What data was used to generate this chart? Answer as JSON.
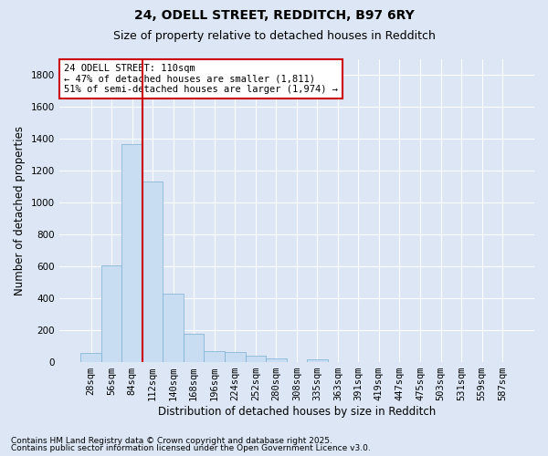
{
  "title_line1": "24, ODELL STREET, REDDITCH, B97 6RY",
  "title_line2": "Size of property relative to detached houses in Redditch",
  "xlabel": "Distribution of detached houses by size in Redditch",
  "ylabel": "Number of detached properties",
  "categories": [
    "28sqm",
    "56sqm",
    "84sqm",
    "112sqm",
    "140sqm",
    "168sqm",
    "196sqm",
    "224sqm",
    "252sqm",
    "280sqm",
    "308sqm",
    "335sqm",
    "363sqm",
    "391sqm",
    "419sqm",
    "447sqm",
    "475sqm",
    "503sqm",
    "531sqm",
    "559sqm",
    "587sqm"
  ],
  "values": [
    55,
    605,
    1365,
    1130,
    430,
    175,
    65,
    60,
    40,
    20,
    0,
    15,
    0,
    0,
    0,
    0,
    0,
    0,
    0,
    0,
    0
  ],
  "bar_color": "#c9ddf2",
  "bar_edge_color": "#7bafd4",
  "vline_pos": 2.5,
  "vline_color": "#cc0000",
  "annotation_text": "24 ODELL STREET: 110sqm\n← 47% of detached houses are smaller (1,811)\n51% of semi-detached houses are larger (1,974) →",
  "annotation_box_edge": "#cc0000",
  "ylim": [
    0,
    1900
  ],
  "yticks": [
    0,
    200,
    400,
    600,
    800,
    1000,
    1200,
    1400,
    1600,
    1800
  ],
  "footer_line1": "Contains HM Land Registry data © Crown copyright and database right 2025.",
  "footer_line2": "Contains public sector information licensed under the Open Government Licence v3.0.",
  "fig_facecolor": "#dce6f5",
  "plot_facecolor": "#dce6f5",
  "grid_color": "#ffffff",
  "title_fontsize": 10,
  "subtitle_fontsize": 9,
  "axis_label_fontsize": 8.5,
  "tick_fontsize": 7.5,
  "annotation_fontsize": 7.5,
  "footer_fontsize": 6.5
}
